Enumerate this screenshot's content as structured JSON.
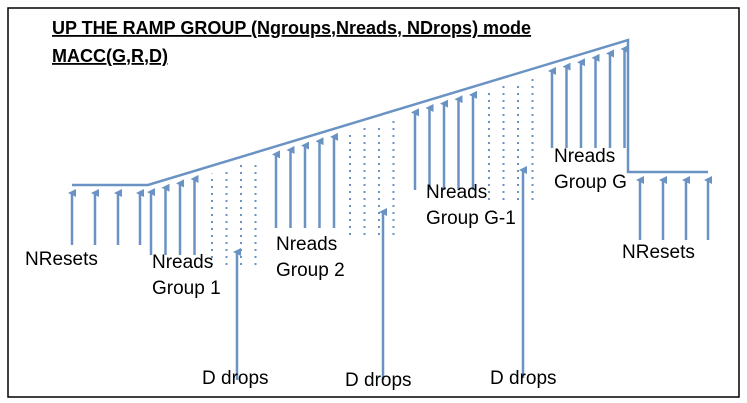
{
  "title": {
    "line1": "UP THE RAMP GROUP (Ngroups,Nreads, NDrops) mode",
    "line2": "MACC(G,R,D)"
  },
  "labels": {
    "resets_left": "NResets",
    "group1": {
      "line1": "Nreads",
      "line2": "Group 1"
    },
    "group2": {
      "line1": "Nreads",
      "line2": "Group 2"
    },
    "groupG1": {
      "line1": "Nreads",
      "line2": "Group G-1"
    },
    "groupG": {
      "line1": "Nreads",
      "line2": "Group G"
    },
    "resets_right": "NResets",
    "drops": [
      "D drops",
      "D drops",
      "D drops"
    ]
  }
}
